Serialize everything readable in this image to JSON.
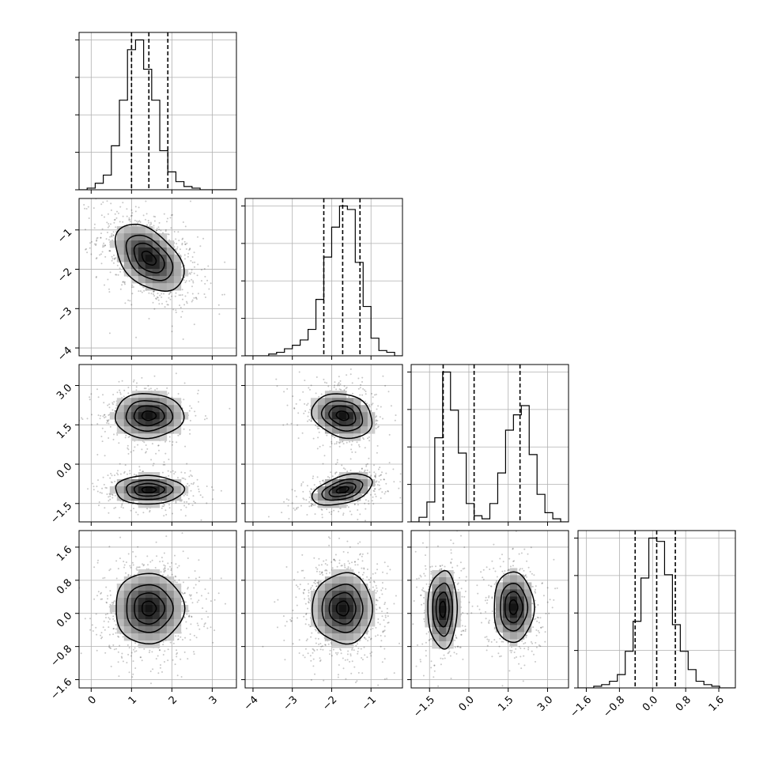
{
  "chart_data": {
    "type": "corner",
    "grid": true,
    "quantiles_shown": [
      0.16,
      0.5,
      0.84
    ],
    "parameters": [
      {
        "index": 0,
        "range": [
          -0.3,
          3.6
        ],
        "ticks": [
          0,
          1,
          2,
          3
        ],
        "tick_labels": [
          "0",
          "1",
          "2",
          "3"
        ],
        "quantiles": [
          1.0,
          1.43,
          1.9
        ],
        "hist": {
          "start": -0.3,
          "width": 0.2,
          "counts": [
            0,
            1,
            4,
            9,
            27,
            55,
            86,
            92,
            74,
            55,
            24,
            11,
            5,
            2,
            1,
            0,
            0,
            0,
            0,
            0
          ]
        }
      },
      {
        "index": 1,
        "range": [
          -4.2,
          -0.2
        ],
        "ticks": [
          -4,
          -3,
          -2,
          -1
        ],
        "tick_labels": [
          "−4",
          "−3",
          "−2",
          "−1"
        ],
        "quantiles": [
          -2.2,
          -1.72,
          -1.28
        ],
        "hist": {
          "start": -4.2,
          "width": 0.2,
          "counts": [
            0,
            0,
            0,
            1,
            2,
            4,
            6,
            9,
            15,
            32,
            56,
            73,
            85,
            83,
            53,
            28,
            10,
            3,
            2,
            0
          ]
        }
      },
      {
        "index": 2,
        "range": [
          -2.2,
          3.8
        ],
        "ticks": [
          -1.5,
          0.0,
          1.5,
          3.0
        ],
        "tick_labels": [
          "−1.5",
          "0.0",
          "1.5",
          "3.0"
        ],
        "quantiles": [
          -0.98,
          0.2,
          1.95
        ],
        "hist": {
          "start": -2.2,
          "width": 0.3,
          "counts": [
            0,
            3,
            13,
            55,
            98,
            73,
            45,
            12,
            4,
            2,
            12,
            32,
            60,
            70,
            76,
            44,
            18,
            6,
            2,
            0
          ]
        }
      },
      {
        "index": 3,
        "range": [
          -1.8,
          2.0
        ],
        "ticks": [
          -1.6,
          -0.8,
          0.0,
          0.8,
          1.6
        ],
        "tick_labels": [
          "−1.6",
          "−0.8",
          "0.0",
          "0.8",
          "1.6"
        ],
        "quantiles": [
          -0.42,
          0.1,
          0.55
        ],
        "hist": {
          "start": -1.8,
          "width": 0.19,
          "counts": [
            0,
            0,
            1,
            2,
            4,
            8,
            22,
            40,
            66,
            90,
            88,
            68,
            38,
            22,
            11,
            4,
            2,
            1,
            0,
            0
          ]
        }
      }
    ],
    "pairs": [
      {
        "x": 0,
        "y": 1,
        "modes": [
          {
            "cx": 1.43,
            "cy": -1.72,
            "sx": 0.5,
            "sy": 0.5,
            "rho": -0.45
          }
        ]
      },
      {
        "x": 0,
        "y": 2,
        "modes": [
          {
            "cx": 1.43,
            "cy": 1.85,
            "sx": 0.5,
            "sy": 0.5,
            "rho": 0.0
          },
          {
            "cx": 1.43,
            "cy": -0.98,
            "sx": 0.5,
            "sy": 0.32,
            "rho": 0.0
          }
        ]
      },
      {
        "x": 0,
        "y": 3,
        "modes": [
          {
            "cx": 1.43,
            "cy": 0.12,
            "sx": 0.5,
            "sy": 0.5,
            "rho": 0.0
          }
        ]
      },
      {
        "x": 1,
        "y": 2,
        "modes": [
          {
            "cx": -1.72,
            "cy": 1.85,
            "sx": 0.45,
            "sy": 0.5,
            "rho": -0.2
          },
          {
            "cx": -1.72,
            "cy": -0.98,
            "sx": 0.45,
            "sy": 0.35,
            "rho": 0.45
          }
        ]
      },
      {
        "x": 1,
        "y": 3,
        "modes": [
          {
            "cx": -1.72,
            "cy": 0.12,
            "sx": 0.45,
            "sy": 0.5,
            "rho": 0.0
          }
        ]
      },
      {
        "x": 2,
        "y": 3,
        "modes": [
          {
            "cx": -1.0,
            "cy": 0.1,
            "sx": 0.33,
            "sy": 0.55,
            "rho": 0.0
          },
          {
            "cx": 1.7,
            "cy": 0.15,
            "sx": 0.45,
            "sy": 0.5,
            "rho": 0.0
          }
        ]
      }
    ]
  }
}
